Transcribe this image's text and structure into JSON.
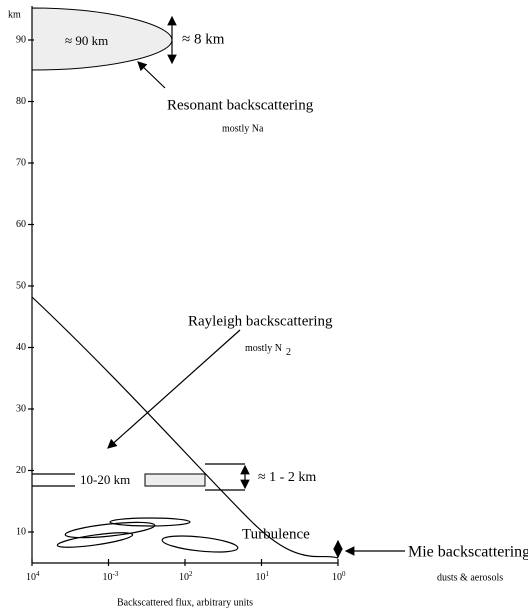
{
  "y_axis": {
    "unit": "km",
    "ticks": [
      "90",
      "80",
      "70",
      "60",
      "50",
      "40",
      "30",
      "20",
      "10"
    ]
  },
  "x_axis": {
    "title": "Backscattered flux, arbitrary units",
    "ticks": [
      {
        "base": "10",
        "exp": "4"
      },
      {
        "base": "10",
        "exp": "-3"
      },
      {
        "base": "10",
        "exp": "2"
      },
      {
        "base": "10",
        "exp": "1"
      },
      {
        "base": "10",
        "exp": "0"
      }
    ]
  },
  "resonant": {
    "altitude": "≈ 90 km",
    "thickness": "≈ 8 km",
    "title": "Resonant backscattering",
    "subtitle": "mostly Na"
  },
  "rayleigh": {
    "title": "Rayleigh backscattering",
    "subtitle": "mostly N",
    "subscript": "2",
    "band": "10-20 km",
    "thickness": "≈ 1 - 2 km"
  },
  "turbulence": {
    "label": "Turbulence"
  },
  "mie": {
    "title": "Mie  backscattering",
    "subtitle": "dusts & aerosols"
  }
}
